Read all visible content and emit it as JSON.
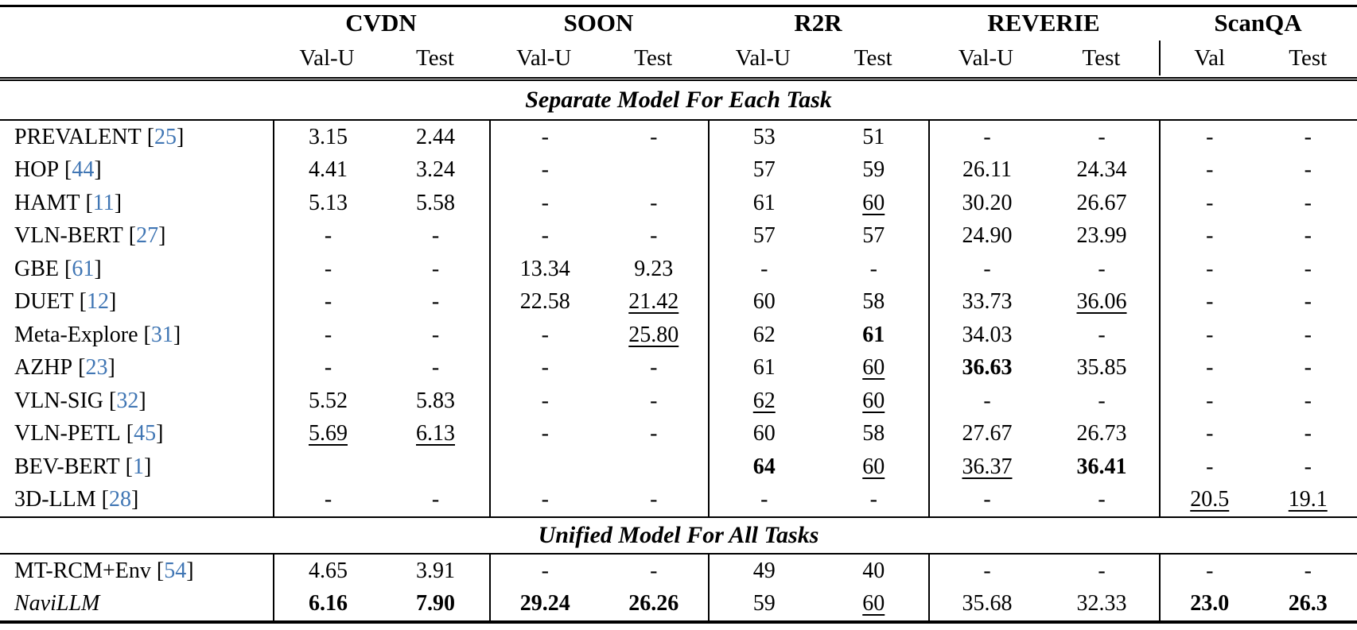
{
  "colors": {
    "citation_blue": "#4076b4"
  },
  "columns": {
    "groups": [
      {
        "label": "CVDN",
        "sub": [
          "Val-U",
          "Test"
        ]
      },
      {
        "label": "SOON",
        "sub": [
          "Val-U",
          "Test"
        ]
      },
      {
        "label": "R2R",
        "sub": [
          "Val-U",
          "Test"
        ]
      },
      {
        "label": "REVERIE",
        "sub": [
          "Val-U",
          "Test"
        ]
      },
      {
        "label": "ScanQA",
        "sub": [
          "Val",
          "Test"
        ]
      }
    ]
  },
  "sections": [
    {
      "title": "Separate Model For Each Task",
      "rows": [
        {
          "model": "PREVALENT",
          "cite": "25",
          "cells": [
            "3.15",
            "2.44",
            "-",
            "-",
            "53",
            "51",
            "-",
            "-",
            "-",
            "-"
          ]
        },
        {
          "model": "HOP",
          "cite": "44",
          "cells": [
            "4.41",
            "3.24",
            "-",
            "",
            "57",
            "59",
            "26.11",
            "24.34",
            "-",
            "-"
          ]
        },
        {
          "model": "HAMT",
          "cite": "11",
          "cells": [
            "5.13",
            "5.58",
            "-",
            "-",
            "61",
            {
              "v": "60",
              "u": true
            },
            "30.20",
            "26.67",
            "-",
            "-"
          ]
        },
        {
          "model": "VLN-BERT",
          "cite": "27",
          "cells": [
            "-",
            "-",
            "-",
            "-",
            "57",
            "57",
            "24.90",
            "23.99",
            "-",
            "-"
          ]
        },
        {
          "model": "GBE",
          "cite": "61",
          "cells": [
            "-",
            "-",
            "13.34",
            "9.23",
            "-",
            "-",
            "-",
            "-",
            "-",
            "-"
          ]
        },
        {
          "model": "DUET",
          "cite": "12",
          "cells": [
            "-",
            "-",
            "22.58",
            {
              "v": "21.42",
              "u": true
            },
            "60",
            "58",
            "33.73",
            {
              "v": "36.06",
              "u": true
            },
            "-",
            "-"
          ]
        },
        {
          "model": "Meta-Explore",
          "cite": "31",
          "cells": [
            "-",
            "-",
            "-",
            {
              "v": "25.80",
              "u": true
            },
            "62",
            {
              "v": "61",
              "b": true
            },
            "34.03",
            "-",
            "-",
            "-"
          ]
        },
        {
          "model": "AZHP",
          "cite": "23",
          "cells": [
            "-",
            "-",
            "-",
            "-",
            "61",
            {
              "v": "60",
              "u": true
            },
            {
              "v": "36.63",
              "b": true
            },
            "35.85",
            "-",
            "-"
          ]
        },
        {
          "model": "VLN-SIG",
          "cite": "32",
          "cells": [
            "5.52",
            "5.83",
            "-",
            "-",
            {
              "v": "62",
              "u": true
            },
            {
              "v": "60",
              "u": true
            },
            "-",
            "-",
            "-",
            "-"
          ]
        },
        {
          "model": "VLN-PETL",
          "cite": "45",
          "cells": [
            {
              "v": "5.69",
              "u": true
            },
            {
              "v": "6.13",
              "u": true
            },
            "-",
            "-",
            "60",
            "58",
            "27.67",
            "26.73",
            "-",
            "-"
          ]
        },
        {
          "model": "BEV-BERT",
          "cite": "1",
          "cells": [
            "",
            "",
            "",
            "",
            {
              "v": "64",
              "b": true
            },
            {
              "v": "60",
              "u": true
            },
            {
              "v": "36.37",
              "u": true
            },
            {
              "v": "36.41",
              "b": true
            },
            "-",
            "-"
          ]
        },
        {
          "model": "3D-LLM",
          "cite": "28",
          "cells": [
            "-",
            "-",
            "-",
            "-",
            "-",
            "-",
            "-",
            "-",
            {
              "v": "20.5",
              "u": true
            },
            {
              "v": "19.1",
              "u": true
            }
          ]
        }
      ]
    },
    {
      "title": "Unified Model For All Tasks",
      "rows": [
        {
          "model": "MT-RCM+Env",
          "cite": "54",
          "cells": [
            "4.65",
            "3.91",
            "-",
            "-",
            "49",
            "40",
            "-",
            "-",
            "-",
            "-"
          ]
        },
        {
          "model": "NaviLLM",
          "cite": null,
          "italic": true,
          "cells": [
            {
              "v": "6.16",
              "b": true
            },
            {
              "v": "7.90",
              "b": true
            },
            {
              "v": "29.24",
              "b": true
            },
            {
              "v": "26.26",
              "b": true
            },
            "59",
            {
              "v": "60",
              "u": true
            },
            "35.68",
            "32.33",
            {
              "v": "23.0",
              "b": true
            },
            {
              "v": "26.3",
              "b": true
            }
          ]
        }
      ]
    }
  ]
}
